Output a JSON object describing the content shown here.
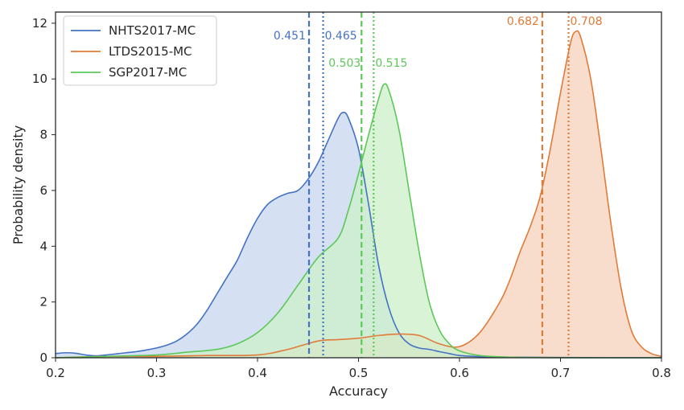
{
  "chart_data": {
    "type": "area",
    "title": "",
    "xlabel": "Accuracy",
    "ylabel": "Probability density",
    "xlim": [
      0.2,
      0.8
    ],
    "ylim": [
      0,
      12.4
    ],
    "xticks": [
      "0.2",
      "0.3",
      "0.4",
      "0.5",
      "0.6",
      "0.7",
      "0.8"
    ],
    "yticks": [
      "0",
      "2",
      "4",
      "6",
      "8",
      "10",
      "12"
    ],
    "grid": false,
    "legend_position": "top-left",
    "series": [
      {
        "name": "NHTS2017-MC",
        "color": "#4472C4",
        "fill": "#C9D7F0",
        "x": [
          0.2,
          0.21,
          0.22,
          0.23,
          0.24,
          0.25,
          0.26,
          0.27,
          0.28,
          0.29,
          0.3,
          0.31,
          0.32,
          0.33,
          0.34,
          0.35,
          0.36,
          0.37,
          0.38,
          0.39,
          0.4,
          0.41,
          0.42,
          0.43,
          0.44,
          0.45,
          0.46,
          0.47,
          0.48,
          0.485,
          0.49,
          0.5,
          0.51,
          0.52,
          0.53,
          0.54,
          0.55,
          0.56,
          0.57,
          0.58,
          0.59,
          0.6,
          0.62,
          0.65,
          0.7,
          0.75,
          0.8
        ],
        "y": [
          0.15,
          0.18,
          0.16,
          0.1,
          0.07,
          0.1,
          0.14,
          0.18,
          0.22,
          0.28,
          0.35,
          0.45,
          0.6,
          0.85,
          1.2,
          1.7,
          2.3,
          2.9,
          3.5,
          4.3,
          5.0,
          5.5,
          5.75,
          5.9,
          6.0,
          6.4,
          7.0,
          7.8,
          8.6,
          8.8,
          8.6,
          7.5,
          5.5,
          3.3,
          1.8,
          0.9,
          0.5,
          0.35,
          0.3,
          0.22,
          0.15,
          0.08,
          0.04,
          0.02,
          0.01,
          0.0,
          0.0
        ]
      },
      {
        "name": "LTDS2015-MC",
        "color": "#E07B39",
        "fill": "#F7D3BE",
        "x": [
          0.2,
          0.25,
          0.3,
          0.35,
          0.4,
          0.43,
          0.46,
          0.48,
          0.5,
          0.52,
          0.54,
          0.56,
          0.58,
          0.6,
          0.62,
          0.64,
          0.65,
          0.66,
          0.67,
          0.68,
          0.69,
          0.7,
          0.71,
          0.715,
          0.72,
          0.73,
          0.74,
          0.75,
          0.76,
          0.77,
          0.78,
          0.79,
          0.8
        ],
        "y": [
          0.0,
          0.05,
          0.05,
          0.08,
          0.1,
          0.3,
          0.6,
          0.65,
          0.7,
          0.8,
          0.85,
          0.8,
          0.5,
          0.4,
          0.9,
          2.0,
          2.8,
          3.8,
          4.7,
          5.8,
          7.5,
          9.5,
          11.3,
          11.7,
          11.5,
          10.0,
          7.5,
          4.8,
          2.5,
          1.0,
          0.4,
          0.15,
          0.05
        ]
      },
      {
        "name": "SGP2017-MC",
        "color": "#5DC859",
        "fill": "#CDEFCB",
        "x": [
          0.2,
          0.25,
          0.3,
          0.33,
          0.36,
          0.38,
          0.4,
          0.42,
          0.44,
          0.46,
          0.48,
          0.49,
          0.5,
          0.51,
          0.52,
          0.525,
          0.53,
          0.54,
          0.55,
          0.56,
          0.57,
          0.58,
          0.59,
          0.6,
          0.62,
          0.65,
          0.7,
          0.8
        ],
        "y": [
          0.0,
          0.05,
          0.1,
          0.2,
          0.3,
          0.5,
          0.9,
          1.6,
          2.6,
          3.6,
          4.3,
          5.3,
          6.6,
          8.0,
          9.3,
          9.8,
          9.6,
          8.2,
          6.0,
          3.8,
          2.0,
          1.0,
          0.5,
          0.25,
          0.08,
          0.02,
          0.0,
          0.0
        ]
      }
    ],
    "reference_lines": [
      {
        "series": "NHTS2017-MC",
        "x": 0.451,
        "style": "dashed",
        "label": "0.451"
      },
      {
        "series": "NHTS2017-MC",
        "x": 0.465,
        "style": "dotted",
        "label": "0.465"
      },
      {
        "series": "SGP2017-MC",
        "x": 0.503,
        "style": "dashed",
        "label": "0.503"
      },
      {
        "series": "SGP2017-MC",
        "x": 0.515,
        "style": "dotted",
        "label": "0.515"
      },
      {
        "series": "LTDS2015-MC",
        "x": 0.682,
        "style": "dashed",
        "label": "0.682"
      },
      {
        "series": "LTDS2015-MC",
        "x": 0.708,
        "style": "dotted",
        "label": "0.708"
      }
    ]
  }
}
